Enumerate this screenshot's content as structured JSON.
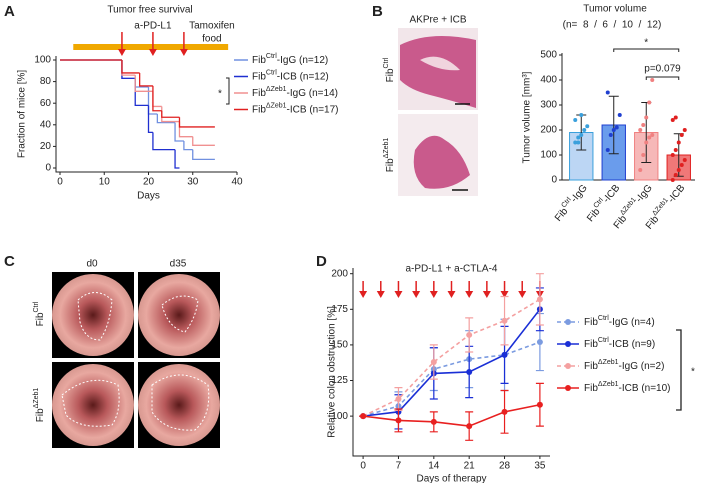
{
  "panel_labels": [
    "A",
    "B",
    "C",
    "D"
  ],
  "images": {
    "b_title": "AKPre + ICB",
    "b_rows": [
      "FibCtrl",
      "FibΔZeb1"
    ],
    "c_cols": [
      "d0",
      "d35"
    ],
    "c_rows": [
      "FibCtrl",
      "FibΔZeb1"
    ]
  },
  "chart_data": [
    {
      "type": "step",
      "title": "Tumor free survival",
      "xlabel": "Days",
      "ylabel": "Fraction of mice [%]",
      "xlim": [
        0,
        40
      ],
      "xticks": [
        0,
        10,
        20,
        30,
        40
      ],
      "ylim": [
        0,
        100
      ],
      "yticks": [
        0,
        20,
        40,
        60,
        80,
        100
      ],
      "arrow_label": "a-PD-L1",
      "arrow_color": "#e02020",
      "arrows_x": [
        14,
        21,
        28
      ],
      "food_label": [
        "Tamoxifen",
        "food"
      ],
      "food_color": "#f0a800",
      "food_range": [
        3,
        38
      ],
      "significance": "*",
      "series": [
        {
          "name": "FibCtrl-IgG (n=12)",
          "color": "#7090e0",
          "x": [
            0,
            14,
            17,
            20,
            22,
            26,
            28,
            30,
            35
          ],
          "values": [
            100,
            83,
            75,
            50,
            42,
            25,
            17,
            8,
            8
          ]
        },
        {
          "name": "FibCtrl-ICB (n=12)",
          "color": "#1f2fd0",
          "x": [
            0,
            14,
            17,
            20,
            21,
            26,
            27
          ],
          "values": [
            100,
            83,
            58,
            33,
            17,
            0,
            0
          ]
        },
        {
          "name": "FibΔZeb1-IgG (n=14)",
          "color": "#f09090",
          "x": [
            0,
            14,
            17,
            21,
            23,
            27,
            30,
            35
          ],
          "values": [
            100,
            86,
            71,
            57,
            43,
            29,
            21,
            21
          ]
        },
        {
          "name": "FibΔZeb1-ICB (n=17)",
          "color": "#e02020",
          "x": [
            0,
            14,
            18,
            21,
            23,
            27,
            35
          ],
          "values": [
            100,
            88,
            76,
            53,
            47,
            38,
            38
          ]
        }
      ]
    },
    {
      "type": "bar",
      "title": "Tumor volume",
      "subtitle": "(n=  8  /  6  /  10  /  12)",
      "ylabel": "Tumor volume [mm³]",
      "categories": [
        "FibCtrl-IgG",
        "FibCtrl-ICB",
        "FibΔZeb1-IgG",
        "FibΔZeb1-ICB"
      ],
      "values": [
        190,
        220,
        190,
        100
      ],
      "errors": [
        70,
        115,
        120,
        85
      ],
      "colors": [
        "#bcd6f4",
        "#6a9cec",
        "#f6b8b8",
        "#f07878"
      ],
      "point_colors": [
        "#3aa0dc",
        "#1f3fd0",
        "#f08080",
        "#e02020"
      ],
      "points": [
        [
          150,
          170,
          180,
          200,
          215,
          240,
          150,
          260
        ],
        [
          120,
          180,
          200,
          210,
          260,
          350
        ],
        [
          40,
          100,
          150,
          170,
          180,
          200,
          220,
          250,
          310,
          400
        ],
        [
          0,
          20,
          40,
          60,
          80,
          100,
          120,
          150,
          180,
          200,
          240,
          250
        ]
      ],
      "ylim": [
        0,
        500
      ],
      "yticks": [
        0,
        100,
        200,
        300,
        400,
        500
      ],
      "significance": "*",
      "p_label": "p=0.079"
    },
    {
      "type": "line",
      "xlabel": "Days of therapy",
      "ylabel": "Relative colon obstruction [%]",
      "annotation": "a-PD-L1 + a-CTLA-4",
      "annotation_color": "#e02020",
      "treatment_days": [
        0,
        3.5,
        7,
        10.5,
        14,
        17.5,
        21,
        24.5,
        28,
        31.5,
        35
      ],
      "x": [
        0,
        7,
        14,
        21,
        28,
        35
      ],
      "xlim": [
        -2,
        37
      ],
      "xticks": [
        0,
        7,
        14,
        21,
        28,
        35
      ],
      "ylim": [
        72,
        204
      ],
      "yticks": [
        100,
        125,
        150,
        175,
        200
      ],
      "significance": "*",
      "series": [
        {
          "name": "FibCtrl-IgG (n=4)",
          "color": "#7b9be0",
          "dashed": true,
          "values": [
            100,
            107,
            133,
            140,
            143,
            152
          ],
          "errors": [
            0,
            10,
            15,
            20,
            25,
            20
          ]
        },
        {
          "name": "FibCtrl-ICB (n=9)",
          "color": "#1a2fd6",
          "dashed": false,
          "values": [
            100,
            103,
            130,
            131,
            143,
            175
          ],
          "errors": [
            0,
            12,
            18,
            18,
            20,
            15
          ]
        },
        {
          "name": "FibΔZeb1-IgG (n=2)",
          "color": "#f4a0a0",
          "dashed": true,
          "values": [
            100,
            112,
            138,
            157,
            167,
            182
          ],
          "errors": [
            0,
            8,
            12,
            12,
            17,
            18
          ]
        },
        {
          "name": "FibΔZeb1-ICB (n=10)",
          "color": "#e82020",
          "dashed": false,
          "values": [
            100,
            97,
            96,
            93,
            103,
            108
          ],
          "errors": [
            0,
            8,
            7,
            10,
            15,
            15
          ]
        }
      ]
    }
  ]
}
